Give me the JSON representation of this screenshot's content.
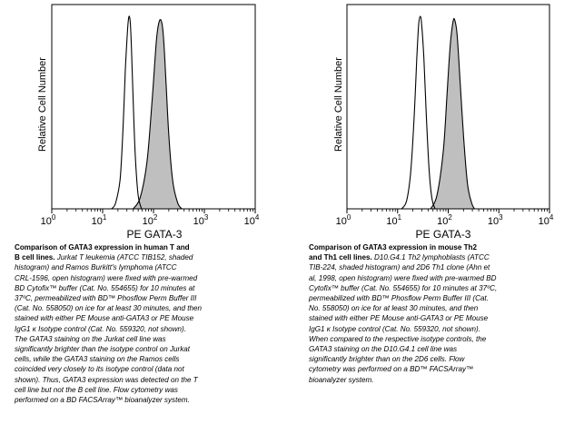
{
  "chart_data": [
    {
      "type": "histogram",
      "title": "",
      "xlabel": "PE GATA-3",
      "ylabel": "Relative Cell Number",
      "xscale": "log",
      "xlim": [
        1,
        10000
      ],
      "x_ticks": [
        {
          "base": "10",
          "exp": "0"
        },
        {
          "base": "10",
          "exp": "1"
        },
        {
          "base": "10",
          "exp": "2"
        },
        {
          "base": "10",
          "exp": "3"
        },
        {
          "base": "10",
          "exp": "4"
        }
      ],
      "series": [
        {
          "style": "open",
          "x": [
            15,
            18,
            22,
            25,
            28,
            31,
            33,
            35,
            37,
            40,
            44,
            50,
            58
          ],
          "y": [
            0,
            0.03,
            0.15,
            0.4,
            0.72,
            0.93,
            0.995,
            0.96,
            0.82,
            0.55,
            0.27,
            0.07,
            0
          ]
        },
        {
          "style": "shaded",
          "color": "#bfbfbf",
          "x": [
            40,
            55,
            75,
            95,
            115,
            130,
            145,
            158,
            175,
            200,
            240,
            300,
            360
          ],
          "y": [
            0,
            0.06,
            0.25,
            0.58,
            0.88,
            0.97,
            0.965,
            0.88,
            0.67,
            0.38,
            0.14,
            0.03,
            0
          ]
        }
      ]
    },
    {
      "type": "histogram",
      "title": "",
      "xlabel": "PE GATA-3",
      "ylabel": "Relative Cell Number",
      "xscale": "log",
      "xlim": [
        1,
        10000
      ],
      "x_ticks": [
        {
          "base": "10",
          "exp": "0"
        },
        {
          "base": "10",
          "exp": "1"
        },
        {
          "base": "10",
          "exp": "2"
        },
        {
          "base": "10",
          "exp": "3"
        },
        {
          "base": "10",
          "exp": "4"
        }
      ],
      "series": [
        {
          "style": "open",
          "x": [
            12,
            15,
            18,
            21,
            24,
            26,
            28,
            30,
            33,
            37,
            42,
            48,
            55
          ],
          "y": [
            0,
            0.04,
            0.18,
            0.45,
            0.78,
            0.95,
            0.995,
            0.95,
            0.78,
            0.48,
            0.2,
            0.05,
            0
          ]
        },
        {
          "style": "shaded",
          "color": "#bfbfbf",
          "x": [
            45,
            60,
            80,
            95,
            110,
            125,
            135,
            150,
            170,
            200,
            240,
            290,
            330
          ],
          "y": [
            0,
            0.07,
            0.3,
            0.6,
            0.85,
            0.97,
            0.975,
            0.9,
            0.68,
            0.38,
            0.13,
            0.03,
            0
          ]
        }
      ]
    }
  ],
  "captions": [
    {
      "title": "Comparison of GATA3 expression in human T and\nB cell lines.",
      "body": "  Jurkat T leukemia (ATCC TIB152, shaded\nhistogram) and Ramos Burkitt's lymphoma (ATCC\nCRL-1596, open histogram) were fixed with pre-warmed\nBD Cytofix™ buffer (Cat. No. 554655) for 10 minutes at\n37ºC, permeabilized with BD™ Phosflow Perm Buffer III\n(Cat. No. 558050) on ice for at least 30 minutes, and then\nstained with either PE Mouse anti-GATA3 or PE Mouse\nIgG1 κ Isotype control (Cat. No. 559320, not shown).\nThe GATA3 staining on the Jurkat cell line was\nsignificantly brighter than the isotype control on Jurkat\ncells, while the GATA3 staining on the Ramos cells\ncoincided very closely to its isotype control (data not\nshown).  Thus, GATA3 expression was detected on the T\ncell line but not the B cell line.  Flow cytometry was\nperformed on a BD FACSArray™ bioanalyzer system."
    },
    {
      "title": "Comparison of GATA3 expression in mouse Th2\nand Th1 cell lines.",
      "body": "  D10.G4.1 Th2 lymphoblasts (ATCC\nTIB-224, shaded histogram)  and 2D6 Th1 clone (Ahn et\nal, 1998, open histogram) were fixed with pre-warmed BD\nCytofix™ buffer (Cat. No. 554655) for 10 minutes at 37ºC,\npermeabilized with BD™ Phosflow Perm Buffer III (Cat.\nNo. 558050) on ice for at least 30 minutes, and then\nstained with either PE Mouse anti-GATA3 or PE Mouse\nIgG1 κ Isotype control (Cat. No. 559320, not shown).\nWhen compared to the respective isotype controls, the\nGATA3 staining on the D10.G4.1 cell line was\nsignificantly brighter than on the 2D6 cells.  Flow\ncytometry was performed on a BD™ FACSArray™\nbioanalyzer system."
    }
  ]
}
